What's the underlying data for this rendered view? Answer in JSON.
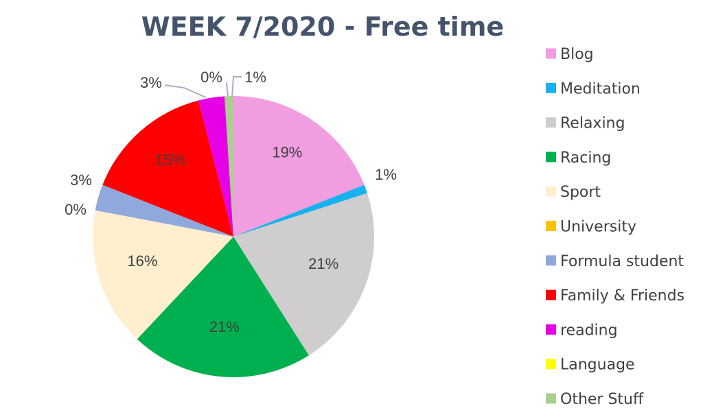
{
  "chart_data": {
    "type": "pie",
    "title": "WEEK 7/2020 - Free time",
    "legend_position": "right",
    "slices": [
      {
        "name": "Blog",
        "value": 19,
        "label": "19%",
        "color": "#f19ee0"
      },
      {
        "name": "Meditation",
        "value": 1,
        "label": "1%",
        "color": "#19b0f0"
      },
      {
        "name": "Relaxing",
        "value": 21,
        "label": "21%",
        "color": "#cfcdcd"
      },
      {
        "name": "Racing",
        "value": 21,
        "label": "21%",
        "color": "#00b050"
      },
      {
        "name": "Sport",
        "value": 16,
        "label": "16%",
        "color": "#ffefcf"
      },
      {
        "name": "University",
        "value": 0,
        "label": "0%",
        "color": "#ffc000"
      },
      {
        "name": "Formula student",
        "value": 3,
        "label": "3%",
        "color": "#8fa9dc"
      },
      {
        "name": "Family & Friends",
        "value": 15,
        "label": "15%",
        "color": "#ff0000"
      },
      {
        "name": "reading",
        "value": 3,
        "label": "3%",
        "color": "#e600e6"
      },
      {
        "name": "Language",
        "value": 0,
        "label": "0%",
        "color": "#ffff00"
      },
      {
        "name": "Other Stuff",
        "value": 1,
        "label": "1%",
        "color": "#a9d08e"
      }
    ]
  }
}
